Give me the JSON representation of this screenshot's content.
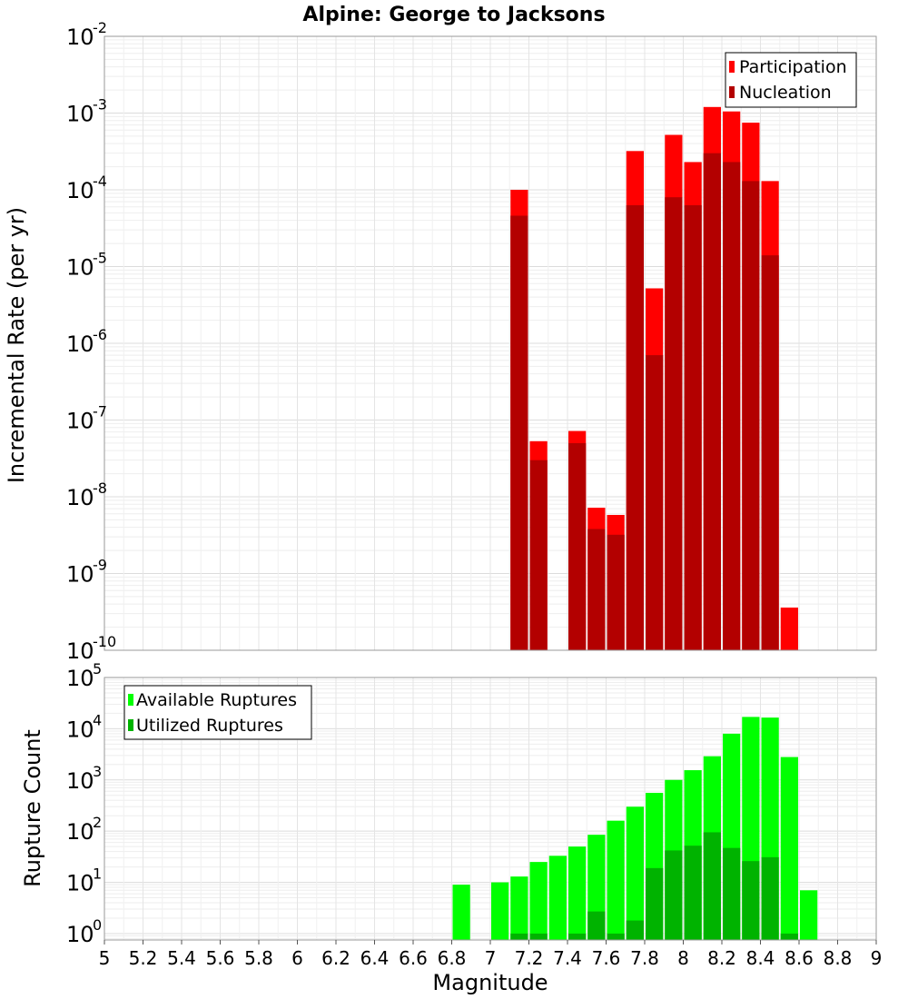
{
  "chart_data": [
    {
      "type": "bar",
      "title": "Alpine: George to Jacksons",
      "ylabel": "Incremental Rate (per yr)",
      "xlabel": "",
      "yscale": "log",
      "ylim": [
        1e-10,
        0.01
      ],
      "xlim": [
        5,
        9
      ],
      "grid": true,
      "legend_position": "top-right",
      "y_ticks": [
        {
          "base": "10",
          "exp": "-2"
        },
        {
          "base": "10",
          "exp": "-3"
        },
        {
          "base": "10",
          "exp": "-4"
        },
        {
          "base": "10",
          "exp": "-5"
        },
        {
          "base": "10",
          "exp": "-6"
        },
        {
          "base": "10",
          "exp": "-7"
        },
        {
          "base": "10",
          "exp": "-8"
        },
        {
          "base": "10",
          "exp": "-9"
        },
        {
          "base": "10",
          "exp": "-10"
        }
      ],
      "series": [
        {
          "name": "Participation",
          "color": "#ff0000",
          "points": [
            [
              7.15,
              0.0001
            ],
            [
              7.25,
              5.3e-08
            ],
            [
              7.45,
              7.2e-08
            ],
            [
              7.55,
              7.2e-09
            ],
            [
              7.65,
              5.8e-09
            ],
            [
              7.75,
              0.00032
            ],
            [
              7.85,
              5.2e-06
            ],
            [
              7.95,
              0.00052
            ],
            [
              8.05,
              0.00023
            ],
            [
              8.15,
              0.0012
            ],
            [
              8.25,
              0.00105
            ],
            [
              8.35,
              0.00075
            ],
            [
              8.45,
              0.00013
            ],
            [
              8.55,
              3.6e-10
            ]
          ]
        },
        {
          "name": "Nucleation",
          "color": "#b30000",
          "points": [
            [
              7.15,
              4.6e-05
            ],
            [
              7.25,
              3e-08
            ],
            [
              7.45,
              5e-08
            ],
            [
              7.55,
              3.8e-09
            ],
            [
              7.65,
              3.2e-09
            ],
            [
              7.75,
              6.3e-05
            ],
            [
              7.85,
              7e-07
            ],
            [
              7.95,
              8e-05
            ],
            [
              8.05,
              6.3e-05
            ],
            [
              8.15,
              0.0003
            ],
            [
              8.25,
              0.00023
            ],
            [
              8.35,
              0.00013
            ],
            [
              8.45,
              1.4e-05
            ]
          ]
        }
      ]
    },
    {
      "type": "bar",
      "title": "",
      "ylabel": "Rupture Count",
      "xlabel": "Magnitude",
      "yscale": "log",
      "ylim": [
        0.75,
        100000
      ],
      "xlim": [
        5,
        9
      ],
      "grid": true,
      "legend_position": "top-left",
      "x_ticks": [
        "5",
        "5.2",
        "5.4",
        "5.6",
        "5.8",
        "6",
        "6.2",
        "6.4",
        "6.6",
        "6.8",
        "7",
        "7.2",
        "7.4",
        "7.6",
        "7.8",
        "8",
        "8.2",
        "8.4",
        "8.6",
        "8.8",
        "9"
      ],
      "y_ticks": [
        {
          "base": "10",
          "exp": "5"
        },
        {
          "base": "10",
          "exp": "4"
        },
        {
          "base": "10",
          "exp": "3"
        },
        {
          "base": "10",
          "exp": "2"
        },
        {
          "base": "10",
          "exp": "1"
        },
        {
          "base": "10",
          "exp": "0"
        }
      ],
      "series": [
        {
          "name": "Available Ruptures",
          "color": "#00ff00",
          "points": [
            [
              6.85,
              9
            ],
            [
              7.05,
              10
            ],
            [
              7.15,
              13
            ],
            [
              7.25,
              25
            ],
            [
              7.35,
              33
            ],
            [
              7.45,
              50
            ],
            [
              7.55,
              85
            ],
            [
              7.65,
              160
            ],
            [
              7.75,
              300
            ],
            [
              7.85,
              560
            ],
            [
              7.95,
              1000
            ],
            [
              8.05,
              1550
            ],
            [
              8.15,
              2900
            ],
            [
              8.25,
              8000
            ],
            [
              8.35,
              17000
            ],
            [
              8.45,
              16500
            ],
            [
              8.55,
              2800
            ],
            [
              8.65,
              7
            ]
          ]
        },
        {
          "name": "Utilized Ruptures",
          "color": "#00b300",
          "points": [
            [
              7.15,
              1
            ],
            [
              7.25,
              1
            ],
            [
              7.45,
              1
            ],
            [
              7.55,
              2.7
            ],
            [
              7.65,
              1
            ],
            [
              7.75,
              1.8
            ],
            [
              7.85,
              19
            ],
            [
              7.95,
              42
            ],
            [
              8.05,
              52
            ],
            [
              8.15,
              95
            ],
            [
              8.25,
              47
            ],
            [
              8.35,
              26
            ],
            [
              8.45,
              31
            ],
            [
              8.55,
              1
            ]
          ]
        }
      ]
    }
  ]
}
